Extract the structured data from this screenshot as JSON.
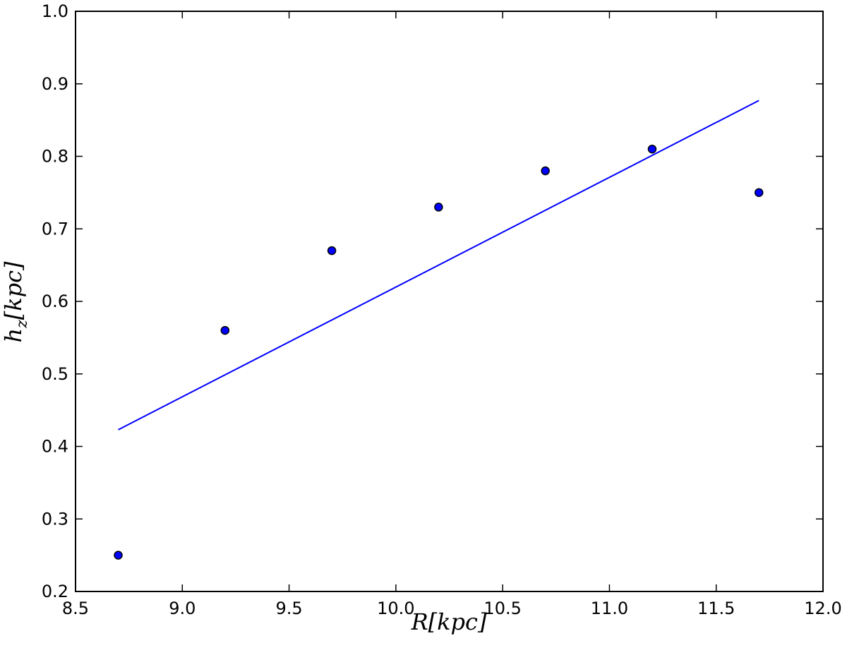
{
  "chart_data": {
    "type": "scatter",
    "xlabel": "R[kpc]",
    "ylabel": "h_z[kpc]",
    "xlim": [
      8.5,
      12.0
    ],
    "ylim": [
      0.2,
      1.0
    ],
    "xticks": [
      "8.5",
      "9.0",
      "9.5",
      "10.0",
      "10.5",
      "11.0",
      "11.5",
      "12.0"
    ],
    "yticks": [
      "0.2",
      "0.3",
      "0.4",
      "0.5",
      "0.6",
      "0.7",
      "0.8",
      "0.9",
      "1.0"
    ],
    "grid": false,
    "series": [
      {
        "kind": "scatter",
        "x": [
          8.7,
          9.2,
          9.7,
          10.2,
          10.7,
          11.2,
          11.7
        ],
        "y": [
          0.25,
          0.56,
          0.67,
          0.73,
          0.78,
          0.81,
          0.75
        ],
        "color": "#0000ff",
        "edge_color": "#000000"
      },
      {
        "kind": "line",
        "x": [
          8.7,
          11.7
        ],
        "y": [
          0.423,
          0.877
        ],
        "color": "#0000ff"
      }
    ]
  }
}
